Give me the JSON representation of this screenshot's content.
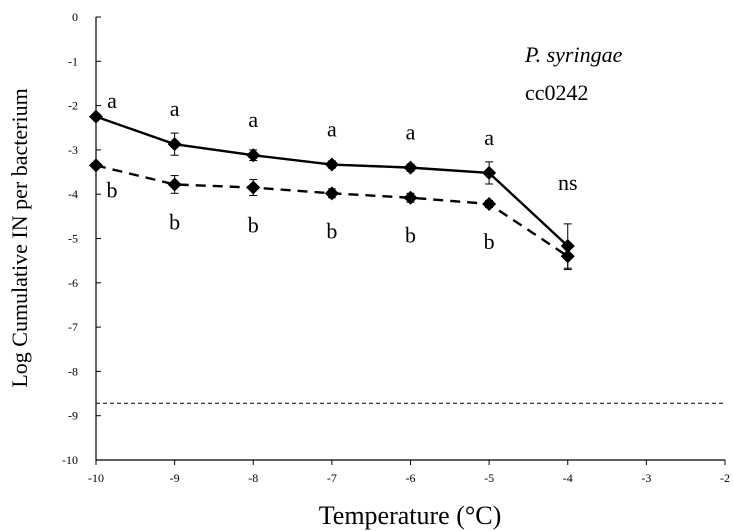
{
  "chart_data": {
    "type": "line",
    "title": "",
    "xlabel": "Temperature  (°C)",
    "ylabel": "Log Cumulative IN per bacterium",
    "xlim": [
      -10,
      -2
    ],
    "ylim": [
      -10,
      0
    ],
    "xticks": [
      -10,
      -9,
      -8,
      -7,
      -6,
      -5,
      -4,
      -3,
      -2
    ],
    "yticks": [
      0,
      -1,
      -2,
      -3,
      -4,
      -5,
      -6,
      -7,
      -8,
      -9,
      -10
    ],
    "grid": false,
    "legend": "none",
    "annotation": {
      "organism": "P. syringae",
      "strain": "cc0242"
    },
    "series": [
      {
        "style": "solid",
        "marker": "diamond",
        "color": "#000000",
        "x": [
          -10,
          -9,
          -8,
          -7,
          -6,
          -5,
          -4
        ],
        "y": [
          -2.25,
          -2.87,
          -3.12,
          -3.33,
          -3.4,
          -3.52,
          -5.17
        ],
        "err": [
          0,
          0.25,
          0.12,
          0.08,
          0.08,
          0.25,
          0.5
        ],
        "labels": [
          "a",
          "a",
          "a",
          "a",
          "a",
          "a",
          "ns"
        ]
      },
      {
        "style": "dashed",
        "marker": "diamond",
        "color": "#000000",
        "x": [
          -10,
          -9,
          -8,
          -7,
          -6,
          -5,
          -4
        ],
        "y": [
          -3.35,
          -3.78,
          -3.85,
          -3.98,
          -4.08,
          -4.22,
          -5.4
        ],
        "err": [
          0,
          0.2,
          0.18,
          0.1,
          0.1,
          0.08,
          0.3
        ],
        "labels": [
          "b",
          "b",
          "b",
          "b",
          "b",
          "b"
        ]
      }
    ],
    "reference_line": {
      "y": -8.72,
      "style": "dashed",
      "x": [
        -10,
        -2
      ]
    }
  }
}
